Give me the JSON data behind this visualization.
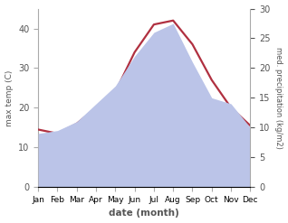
{
  "months": [
    "Jan",
    "Feb",
    "Mar",
    "Apr",
    "May",
    "Jun",
    "Jul",
    "Aug",
    "Sep",
    "Oct",
    "Nov",
    "Dec"
  ],
  "temp": [
    14.5,
    13.5,
    16.0,
    20.0,
    24.0,
    34.0,
    41.0,
    42.0,
    36.0,
    27.0,
    20.0,
    15.5
  ],
  "precip": [
    9.0,
    9.5,
    11.0,
    14.0,
    17.0,
    22.0,
    26.0,
    27.5,
    21.0,
    15.0,
    14.0,
    10.0
  ],
  "temp_color": "#b03040",
  "precip_fill_color": "#bbc4e8",
  "xlabel": "date (month)",
  "ylabel_left": "max temp (C)",
  "ylabel_right": "med. precipitation (kg/m2)",
  "ylim_left": [
    0,
    45
  ],
  "ylim_right": [
    0,
    30
  ],
  "yticks_left": [
    0,
    10,
    20,
    30,
    40
  ],
  "yticks_right": [
    0,
    5,
    10,
    15,
    20,
    25,
    30
  ],
  "bg_color": "#ffffff",
  "label_color": "#555555",
  "temp_linewidth": 1.6
}
